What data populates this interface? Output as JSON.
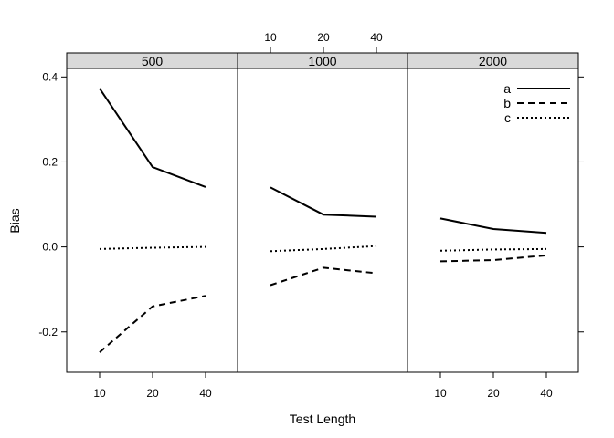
{
  "chart_data": {
    "type": "line",
    "xlabel": "Test Length",
    "ylabel": "Bias",
    "x_tick_labels": [
      "10",
      "20",
      "40"
    ],
    "y_ticks": [
      -0.2,
      0.0,
      0.2,
      0.4
    ],
    "y_tick_labels": [
      "-0.2",
      "0.0",
      "0.2",
      "0.4"
    ],
    "ylim": [
      -0.295,
      0.42
    ],
    "legend_position": "top-right inside last panel",
    "line_styles": {
      "a": "solid",
      "b": "dashed",
      "c": "dotted"
    },
    "panels": [
      {
        "strip": "500",
        "series": [
          {
            "name": "a",
            "values": [
              0.373,
              0.188,
              0.141
            ]
          },
          {
            "name": "b",
            "values": [
              -0.248,
              -0.14,
              -0.115
            ]
          },
          {
            "name": "c",
            "values": [
              -0.005,
              -0.002,
              0.0
            ]
          }
        ]
      },
      {
        "strip": "1000",
        "series": [
          {
            "name": "a",
            "values": [
              0.14,
              0.076,
              0.071
            ]
          },
          {
            "name": "b",
            "values": [
              -0.09,
              -0.049,
              -0.062
            ]
          },
          {
            "name": "c",
            "values": [
              -0.01,
              -0.005,
              0.002
            ]
          }
        ]
      },
      {
        "strip": "2000",
        "series": [
          {
            "name": "a",
            "values": [
              0.067,
              0.042,
              0.033
            ]
          },
          {
            "name": "b",
            "values": [
              -0.034,
              -0.031,
              -0.02
            ]
          },
          {
            "name": "c",
            "values": [
              -0.009,
              -0.006,
              -0.005
            ]
          }
        ]
      }
    ]
  },
  "colors": {
    "strip_background": "#d9d9d9",
    "line": "#000000",
    "frame": "#000000"
  }
}
